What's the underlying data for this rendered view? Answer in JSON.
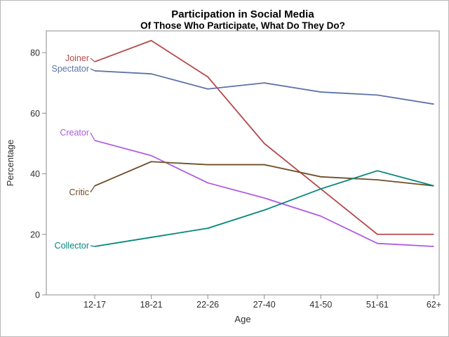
{
  "window": {
    "background": "#ffffff",
    "border_color": "#b9b9b9",
    "frame_color": "#8c8c8c"
  },
  "title": "Participation in Social Media",
  "subtitle": "Of Those Who Participate, What Do They Do?",
  "chart_data": {
    "type": "line",
    "title": "Participation in Social Media",
    "subtitle": "Of Those Who Participate, What Do They Do?",
    "xlabel": "Age",
    "ylabel": "Percentage",
    "categories": [
      "12-17",
      "18-21",
      "22-26",
      "27-40",
      "41-50",
      "51-61",
      "62+"
    ],
    "yticks": [
      0,
      20,
      40,
      60,
      80
    ],
    "ylim": [
      0,
      87
    ],
    "grid": false,
    "legend_style": "curve-labels-at-line-start",
    "series": [
      {
        "name": "Joiner",
        "color": "#B5494A",
        "values": [
          77,
          84,
          72,
          50,
          35,
          20,
          20
        ]
      },
      {
        "name": "Spectator",
        "color": "#5D72A8",
        "values": [
          74,
          73,
          68,
          70,
          67,
          66,
          63
        ]
      },
      {
        "name": "Creator",
        "color": "#AE5BE3",
        "values": [
          51,
          46,
          37,
          32,
          26,
          17,
          16
        ]
      },
      {
        "name": "Critic",
        "color": "#6F4E27",
        "values": [
          36,
          44,
          43,
          43,
          39,
          38,
          36
        ]
      },
      {
        "name": "Collector",
        "color": "#028779",
        "values": [
          16,
          19,
          22,
          28,
          35,
          41,
          36
        ]
      }
    ]
  }
}
